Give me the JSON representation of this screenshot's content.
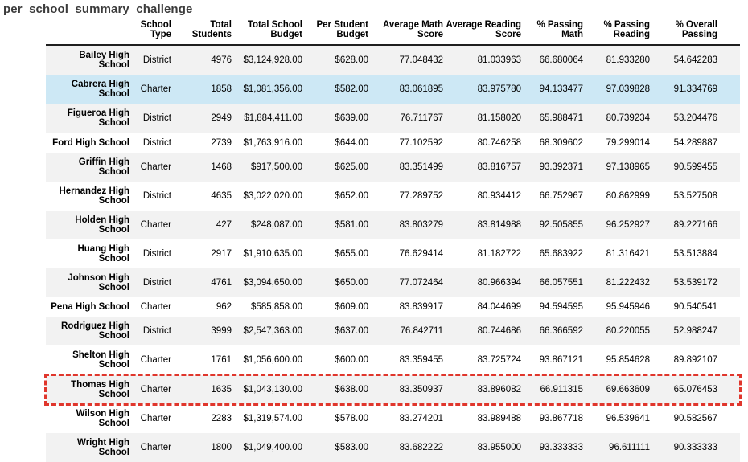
{
  "title": "per_school_summary_challenge",
  "chart_data": {
    "type": "table",
    "title": "per_school_summary_challenge",
    "index_label": "",
    "columns": [
      "School Type",
      "Total Students",
      "Total School Budget",
      "Per Student Budget",
      "Average Math Score",
      "Average Reading Score",
      "% Passing Math",
      "% Passing Reading",
      "% Overall Passing"
    ],
    "rows": [
      [
        "Bailey High School",
        "District",
        "4976",
        "$3,124,928.00",
        "$628.00",
        "77.048432",
        "81.033963",
        "66.680064",
        "81.933280",
        "54.642283"
      ],
      [
        "Cabrera High School",
        "Charter",
        "1858",
        "$1,081,356.00",
        "$582.00",
        "83.061895",
        "83.975780",
        "94.133477",
        "97.039828",
        "91.334769"
      ],
      [
        "Figueroa High School",
        "District",
        "2949",
        "$1,884,411.00",
        "$639.00",
        "76.711767",
        "81.158020",
        "65.988471",
        "80.739234",
        "53.204476"
      ],
      [
        "Ford High School",
        "District",
        "2739",
        "$1,763,916.00",
        "$644.00",
        "77.102592",
        "80.746258",
        "68.309602",
        "79.299014",
        "54.289887"
      ],
      [
        "Griffin High School",
        "Charter",
        "1468",
        "$917,500.00",
        "$625.00",
        "83.351499",
        "83.816757",
        "93.392371",
        "97.138965",
        "90.599455"
      ],
      [
        "Hernandez High School",
        "District",
        "4635",
        "$3,022,020.00",
        "$652.00",
        "77.289752",
        "80.934412",
        "66.752967",
        "80.862999",
        "53.527508"
      ],
      [
        "Holden High School",
        "Charter",
        "427",
        "$248,087.00",
        "$581.00",
        "83.803279",
        "83.814988",
        "92.505855",
        "96.252927",
        "89.227166"
      ],
      [
        "Huang High School",
        "District",
        "2917",
        "$1,910,635.00",
        "$655.00",
        "76.629414",
        "81.182722",
        "65.683922",
        "81.316421",
        "53.513884"
      ],
      [
        "Johnson High School",
        "District",
        "4761",
        "$3,094,650.00",
        "$650.00",
        "77.072464",
        "80.966394",
        "66.057551",
        "81.222432",
        "53.539172"
      ],
      [
        "Pena High School",
        "Charter",
        "962",
        "$585,858.00",
        "$609.00",
        "83.839917",
        "84.044699",
        "94.594595",
        "95.945946",
        "90.540541"
      ],
      [
        "Rodriguez High School",
        "District",
        "3999",
        "$2,547,363.00",
        "$637.00",
        "76.842711",
        "80.744686",
        "66.366592",
        "80.220055",
        "52.988247"
      ],
      [
        "Shelton High School",
        "Charter",
        "1761",
        "$1,056,600.00",
        "$600.00",
        "83.359455",
        "83.725724",
        "93.867121",
        "95.854628",
        "89.892107"
      ],
      [
        "Thomas High School",
        "Charter",
        "1635",
        "$1,043,130.00",
        "$638.00",
        "83.350937",
        "83.896082",
        "66.911315",
        "69.663609",
        "65.076453"
      ],
      [
        "Wilson High School",
        "Charter",
        "2283",
        "$1,319,574.00",
        "$578.00",
        "83.274201",
        "83.989488",
        "93.867718",
        "96.539641",
        "90.582567"
      ],
      [
        "Wright High School",
        "Charter",
        "1800",
        "$1,049,400.00",
        "$583.00",
        "83.682222",
        "83.955000",
        "93.333333",
        "96.611111",
        "90.333333"
      ]
    ]
  },
  "annotations": {
    "row_highlight": {
      "school": "Cabrera High School",
      "color": "#cde8f5"
    },
    "row_outline": {
      "school": "Thomas High School",
      "color": "#e0362c",
      "style": "hand-drawn dashed red box"
    }
  },
  "colors": {
    "row_stripe": "#f2f2f2",
    "header_rule": "#1f1f1f",
    "title_text": "#3b3b3b"
  }
}
